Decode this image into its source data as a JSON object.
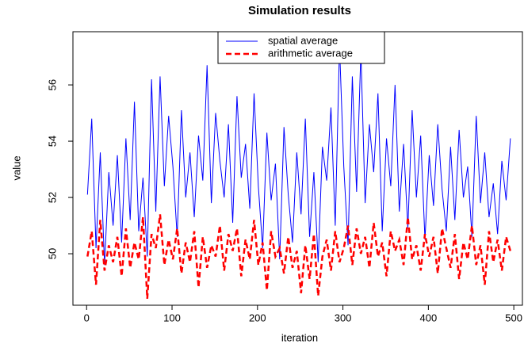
{
  "chart_data": {
    "type": "line",
    "title": "Simulation results",
    "xlabel": "iteration",
    "ylabel": "value",
    "x": [
      1,
      6,
      11,
      16,
      21,
      26,
      31,
      36,
      41,
      46,
      51,
      56,
      61,
      66,
      71,
      76,
      81,
      86,
      91,
      96,
      101,
      106,
      111,
      116,
      121,
      126,
      131,
      136,
      141,
      146,
      151,
      156,
      161,
      166,
      171,
      176,
      181,
      186,
      191,
      196,
      201,
      206,
      211,
      216,
      221,
      226,
      231,
      236,
      241,
      246,
      251,
      256,
      261,
      266,
      271,
      276,
      281,
      286,
      291,
      296,
      301,
      306,
      311,
      316,
      321,
      326,
      331,
      336,
      341,
      346,
      351,
      356,
      361,
      366,
      371,
      376,
      381,
      386,
      391,
      396,
      401,
      406,
      411,
      416,
      421,
      426,
      431,
      436,
      441,
      446,
      451,
      456,
      461,
      466,
      471,
      476,
      481,
      486,
      491,
      496
    ],
    "series": [
      {
        "name": "spatial average",
        "color": "#0000ff",
        "linestyle": "solid",
        "values": [
          52.1,
          54.8,
          50.2,
          53.6,
          49.6,
          52.9,
          51.0,
          53.5,
          50.4,
          54.1,
          51.2,
          55.4,
          50.8,
          52.7,
          49.9,
          56.2,
          51.5,
          56.3,
          52.4,
          54.9,
          53.1,
          50.6,
          55.1,
          52.0,
          53.6,
          51.3,
          54.2,
          52.6,
          56.7,
          51.8,
          55.0,
          53.3,
          52.0,
          54.6,
          51.1,
          55.6,
          52.7,
          53.9,
          51.6,
          55.7,
          52.4,
          50.2,
          54.3,
          51.9,
          53.2,
          49.8,
          54.5,
          52.1,
          50.4,
          53.6,
          51.4,
          54.8,
          50.6,
          52.9,
          49.7,
          53.8,
          52.6,
          55.2,
          51.0,
          57.4,
          53.1,
          50.3,
          56.3,
          52.2,
          57.2,
          51.8,
          54.6,
          52.9,
          55.7,
          50.8,
          54.1,
          52.4,
          56.0,
          51.5,
          53.9,
          50.9,
          55.1,
          52.0,
          54.2,
          50.5,
          53.5,
          51.7,
          54.6,
          52.3,
          50.8,
          53.8,
          51.2,
          54.4,
          52.0,
          53.1,
          50.6,
          54.9,
          51.8,
          53.6,
          51.3,
          52.5,
          50.7,
          53.3,
          51.9,
          54.1
        ]
      },
      {
        "name": "arithmetic average",
        "color": "#ff0000",
        "linestyle": "dashed",
        "values": [
          49.9,
          50.8,
          48.9,
          51.2,
          49.4,
          50.3,
          49.7,
          50.6,
          49.2,
          50.9,
          49.5,
          50.4,
          49.8,
          51.3,
          48.4,
          50.7,
          50.2,
          51.4,
          49.6,
          50.5,
          49.8,
          50.9,
          49.3,
          50.4,
          49.7,
          50.8,
          48.8,
          50.6,
          49.5,
          50.3,
          49.9,
          51.0,
          49.4,
          50.7,
          50.1,
          50.9,
          49.2,
          50.5,
          49.8,
          51.2,
          49.6,
          50.4,
          48.7,
          50.8,
          49.9,
          50.2,
          49.3,
          50.6,
          49.5,
          50.1,
          48.6,
          50.3,
          49.1,
          50.7,
          48.5,
          49.9,
          50.5,
          49.4,
          50.8,
          49.7,
          50.2,
          51.0,
          49.6,
          50.9,
          50.0,
          50.6,
          49.5,
          51.1,
          49.9,
          50.4,
          49.2,
          50.8,
          50.1,
          50.5,
          49.6,
          51.3,
          49.8,
          50.3,
          49.4,
          50.7,
          49.9,
          50.6,
          49.3,
          50.9,
          50.2,
          49.5,
          50.7,
          49.1,
          50.4,
          49.8,
          51.0,
          49.6,
          50.3,
          48.9,
          50.8,
          49.7,
          50.5,
          49.4,
          50.6,
          50.1
        ]
      }
    ],
    "xlim": [
      -16,
      511
    ],
    "xticks": [
      0,
      100,
      200,
      300,
      400,
      500
    ],
    "ylim": [
      48.17,
      57.89
    ],
    "yticks": [
      50,
      52,
      54,
      56
    ],
    "legend": "top",
    "grid": false
  }
}
